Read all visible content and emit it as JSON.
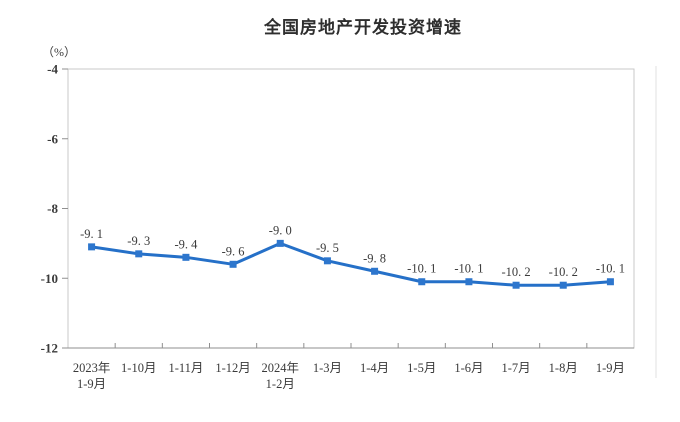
{
  "title": "全国房地产开发投资增速",
  "unit_label": "（%）",
  "divider_color": "#e2e2e2",
  "chart_data": {
    "type": "line",
    "categories": [
      [
        "2023年",
        "1-9月"
      ],
      [
        "1-10月"
      ],
      [
        "1-11月"
      ],
      [
        "1-12月"
      ],
      [
        "2024年",
        "1-2月"
      ],
      [
        "1-3月"
      ],
      [
        "1-4月"
      ],
      [
        "1-5月"
      ],
      [
        "1-6月"
      ],
      [
        "1-7月"
      ],
      [
        "1-8月"
      ],
      [
        "1-9月"
      ]
    ],
    "values": [
      -9.1,
      -9.3,
      -9.4,
      -9.6,
      -9.0,
      -9.5,
      -9.8,
      -10.1,
      -10.1,
      -10.2,
      -10.2,
      -10.1
    ],
    "point_labels": [
      "-9. 1",
      "-9. 3",
      "-9. 4",
      "-9. 6",
      "-9. 0",
      "-9. 5",
      "-9. 8",
      "-10. 1",
      "-10. 1",
      "-10. 2",
      "-10. 2",
      "-10. 1"
    ],
    "yticks": [
      -4,
      -6,
      -8,
      -10,
      -12
    ],
    "ylim": [
      -12,
      -4
    ],
    "xlabel": "",
    "ylabel": "（%）",
    "grid": false,
    "legend_position": "none",
    "line_color": "#2570c8",
    "marker_color": "#2d76cd",
    "marker_shape": "square",
    "axis_color": "#8f8f8f",
    "border_color": "#c9c9c9",
    "text_color": "#3a3a3a"
  }
}
